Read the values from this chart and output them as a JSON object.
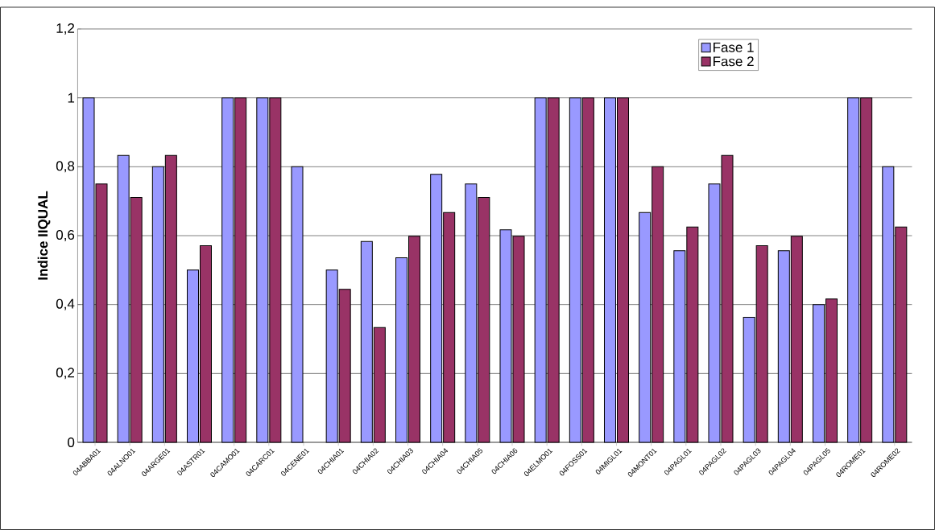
{
  "chart_data": {
    "type": "bar",
    "ylabel": "Indice IIQUAL",
    "categories": [
      "04ABBA01",
      "04ALNO01",
      "04ARGE01",
      "04ASTR01",
      "04CAMO01",
      "04CARC01",
      "04CENE01",
      "04CHIA01",
      "04CHIA02",
      "04CHIA03",
      "04CHIA04",
      "04CHIA05",
      "04CHIA06",
      "04ELMO01",
      "04FOSS01",
      "04MIGL01",
      "04MONT01",
      "04PAGL01",
      "04PAGL02",
      "04PAGL03",
      "04PAGL04",
      "04PAGL05",
      "04ROME01",
      "04ROME02"
    ],
    "series": [
      {
        "name": "Fase 1",
        "color": "#9999ff",
        "values": [
          1,
          0.833,
          0.8,
          0.5,
          1,
          1,
          0.8,
          0.5,
          0.583,
          0.536,
          0.778,
          0.75,
          0.617,
          1,
          1,
          1,
          0.667,
          0.556,
          0.75,
          0.363,
          0.556,
          0.4,
          1,
          0.8
        ]
      },
      {
        "name": "Fase 2",
        "color": "#993366",
        "values": [
          0.75,
          0.711,
          0.833,
          0.571,
          1,
          1,
          null,
          0.444,
          0.333,
          0.598,
          0.667,
          0.711,
          0.598,
          1,
          1,
          1,
          0.8,
          0.625,
          0.833,
          0.571,
          0.598,
          0.416,
          1,
          0.625
        ]
      }
    ],
    "ylim": [
      0,
      1.2
    ],
    "yticks": [
      {
        "value": 0,
        "label": "0"
      },
      {
        "value": 0.2,
        "label": "0,2"
      },
      {
        "value": 0.4,
        "label": "0,4"
      },
      {
        "value": 0.6,
        "label": "0,6"
      },
      {
        "value": 0.8,
        "label": "0,8"
      },
      {
        "value": 1,
        "label": "1"
      },
      {
        "value": 1.2,
        "label": "1,2"
      }
    ],
    "grid": "y",
    "legend": "top right"
  }
}
